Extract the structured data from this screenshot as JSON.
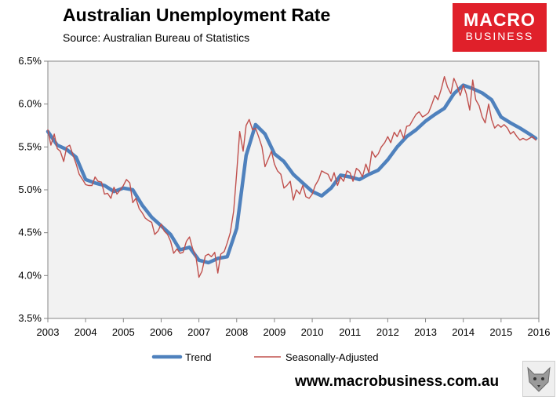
{
  "header": {
    "title": "Australian Unemployment Rate",
    "subtitle": "Source: Australian Bureau of Statistics"
  },
  "logo": {
    "line1": "MACRO",
    "line2": "BUSINESS"
  },
  "footer": {
    "website": "www.macrobusiness.com.au"
  },
  "chart_data": {
    "type": "line",
    "title": "Australian Unemployment Rate",
    "xlim": [
      2003,
      2016
    ],
    "ylim": [
      3.5,
      6.5
    ],
    "x_ticks": [
      2003,
      2004,
      2005,
      2006,
      2007,
      2008,
      2009,
      2010,
      2011,
      2012,
      2013,
      2014,
      2015,
      2016
    ],
    "x_tick_labels": [
      "2003",
      "2004",
      "2005",
      "2006",
      "2007",
      "2008",
      "2009",
      "2010",
      "2011",
      "2012",
      "2013",
      "2014",
      "2015",
      "2016"
    ],
    "y_ticks": [
      3.5,
      4.0,
      4.5,
      5.0,
      5.5,
      6.0,
      6.5
    ],
    "y_tick_labels": [
      "3.5%",
      "4.0%",
      "4.5%",
      "5.0%",
      "5.5%",
      "6.0%",
      "6.5%"
    ],
    "grid": false,
    "legend_position": "bottom",
    "series": [
      {
        "name": "Trend",
        "color": "#4f81bd",
        "points": [
          [
            2003.0,
            5.68
          ],
          [
            2003.25,
            5.52
          ],
          [
            2003.5,
            5.47
          ],
          [
            2003.75,
            5.38
          ],
          [
            2004.0,
            5.12
          ],
          [
            2004.25,
            5.08
          ],
          [
            2004.5,
            5.05
          ],
          [
            2004.75,
            4.98
          ],
          [
            2005.0,
            5.02
          ],
          [
            2005.25,
            5.0
          ],
          [
            2005.5,
            4.82
          ],
          [
            2005.75,
            4.68
          ],
          [
            2006.0,
            4.58
          ],
          [
            2006.25,
            4.48
          ],
          [
            2006.5,
            4.3
          ],
          [
            2006.75,
            4.33
          ],
          [
            2007.0,
            4.18
          ],
          [
            2007.25,
            4.15
          ],
          [
            2007.5,
            4.2
          ],
          [
            2007.75,
            4.22
          ],
          [
            2008.0,
            4.55
          ],
          [
            2008.25,
            5.4
          ],
          [
            2008.5,
            5.76
          ],
          [
            2008.75,
            5.65
          ],
          [
            2009.0,
            5.42
          ],
          [
            2009.25,
            5.33
          ],
          [
            2009.5,
            5.18
          ],
          [
            2009.75,
            5.08
          ],
          [
            2010.0,
            4.98
          ],
          [
            2010.25,
            4.93
          ],
          [
            2010.5,
            5.02
          ],
          [
            2010.75,
            5.17
          ],
          [
            2011.0,
            5.15
          ],
          [
            2011.25,
            5.12
          ],
          [
            2011.5,
            5.18
          ],
          [
            2011.75,
            5.23
          ],
          [
            2012.0,
            5.35
          ],
          [
            2012.25,
            5.5
          ],
          [
            2012.5,
            5.62
          ],
          [
            2012.75,
            5.7
          ],
          [
            2013.0,
            5.8
          ],
          [
            2013.25,
            5.88
          ],
          [
            2013.5,
            5.95
          ],
          [
            2013.75,
            6.12
          ],
          [
            2014.0,
            6.22
          ],
          [
            2014.25,
            6.18
          ],
          [
            2014.5,
            6.13
          ],
          [
            2014.75,
            6.05
          ],
          [
            2015.0,
            5.85
          ],
          [
            2015.25,
            5.78
          ],
          [
            2015.5,
            5.72
          ],
          [
            2015.75,
            5.65
          ],
          [
            2015.92,
            5.6
          ]
        ]
      },
      {
        "name": "Seasonally-Adjusted",
        "color": "#c0504d",
        "points": [
          [
            2003.0,
            5.7
          ],
          [
            2003.08,
            5.52
          ],
          [
            2003.17,
            5.65
          ],
          [
            2003.25,
            5.48
          ],
          [
            2003.33,
            5.45
          ],
          [
            2003.42,
            5.33
          ],
          [
            2003.5,
            5.5
          ],
          [
            2003.58,
            5.52
          ],
          [
            2003.67,
            5.4
          ],
          [
            2003.75,
            5.3
          ],
          [
            2003.83,
            5.18
          ],
          [
            2003.92,
            5.12
          ],
          [
            2004.0,
            5.06
          ],
          [
            2004.08,
            5.05
          ],
          [
            2004.17,
            5.05
          ],
          [
            2004.25,
            5.15
          ],
          [
            2004.33,
            5.1
          ],
          [
            2004.42,
            5.09
          ],
          [
            2004.5,
            4.95
          ],
          [
            2004.58,
            4.96
          ],
          [
            2004.67,
            4.9
          ],
          [
            2004.75,
            5.03
          ],
          [
            2004.83,
            4.95
          ],
          [
            2004.92,
            5.0
          ],
          [
            2005.0,
            5.05
          ],
          [
            2005.08,
            5.12
          ],
          [
            2005.17,
            5.08
          ],
          [
            2005.25,
            4.85
          ],
          [
            2005.33,
            4.9
          ],
          [
            2005.42,
            4.78
          ],
          [
            2005.5,
            4.73
          ],
          [
            2005.58,
            4.67
          ],
          [
            2005.67,
            4.64
          ],
          [
            2005.75,
            4.62
          ],
          [
            2005.83,
            4.48
          ],
          [
            2005.92,
            4.52
          ],
          [
            2006.0,
            4.6
          ],
          [
            2006.08,
            4.52
          ],
          [
            2006.17,
            4.48
          ],
          [
            2006.25,
            4.4
          ],
          [
            2006.33,
            4.26
          ],
          [
            2006.42,
            4.31
          ],
          [
            2006.5,
            4.26
          ],
          [
            2006.58,
            4.27
          ],
          [
            2006.67,
            4.4
          ],
          [
            2006.75,
            4.45
          ],
          [
            2006.83,
            4.32
          ],
          [
            2006.92,
            4.22
          ],
          [
            2007.0,
            3.98
          ],
          [
            2007.08,
            4.05
          ],
          [
            2007.17,
            4.23
          ],
          [
            2007.25,
            4.25
          ],
          [
            2007.33,
            4.22
          ],
          [
            2007.42,
            4.27
          ],
          [
            2007.5,
            4.03
          ],
          [
            2007.58,
            4.25
          ],
          [
            2007.67,
            4.28
          ],
          [
            2007.75,
            4.38
          ],
          [
            2007.83,
            4.5
          ],
          [
            2007.92,
            4.75
          ],
          [
            2008.0,
            5.2
          ],
          [
            2008.08,
            5.68
          ],
          [
            2008.17,
            5.45
          ],
          [
            2008.25,
            5.75
          ],
          [
            2008.33,
            5.82
          ],
          [
            2008.42,
            5.7
          ],
          [
            2008.5,
            5.72
          ],
          [
            2008.58,
            5.62
          ],
          [
            2008.67,
            5.5
          ],
          [
            2008.75,
            5.27
          ],
          [
            2008.83,
            5.35
          ],
          [
            2008.92,
            5.45
          ],
          [
            2009.0,
            5.3
          ],
          [
            2009.08,
            5.22
          ],
          [
            2009.17,
            5.18
          ],
          [
            2009.25,
            5.02
          ],
          [
            2009.33,
            5.05
          ],
          [
            2009.42,
            5.1
          ],
          [
            2009.5,
            4.88
          ],
          [
            2009.58,
            5.0
          ],
          [
            2009.67,
            4.95
          ],
          [
            2009.75,
            5.05
          ],
          [
            2009.83,
            4.92
          ],
          [
            2009.92,
            4.9
          ],
          [
            2010.0,
            4.95
          ],
          [
            2010.08,
            5.05
          ],
          [
            2010.17,
            5.12
          ],
          [
            2010.25,
            5.22
          ],
          [
            2010.33,
            5.2
          ],
          [
            2010.42,
            5.18
          ],
          [
            2010.5,
            5.1
          ],
          [
            2010.58,
            5.2
          ],
          [
            2010.67,
            5.05
          ],
          [
            2010.75,
            5.15
          ],
          [
            2010.83,
            5.1
          ],
          [
            2010.92,
            5.22
          ],
          [
            2011.0,
            5.2
          ],
          [
            2011.08,
            5.1
          ],
          [
            2011.17,
            5.25
          ],
          [
            2011.25,
            5.22
          ],
          [
            2011.33,
            5.15
          ],
          [
            2011.42,
            5.3
          ],
          [
            2011.5,
            5.2
          ],
          [
            2011.58,
            5.45
          ],
          [
            2011.67,
            5.38
          ],
          [
            2011.75,
            5.42
          ],
          [
            2011.83,
            5.5
          ],
          [
            2011.92,
            5.55
          ],
          [
            2012.0,
            5.62
          ],
          [
            2012.08,
            5.55
          ],
          [
            2012.17,
            5.67
          ],
          [
            2012.25,
            5.62
          ],
          [
            2012.33,
            5.7
          ],
          [
            2012.42,
            5.6
          ],
          [
            2012.5,
            5.74
          ],
          [
            2012.58,
            5.75
          ],
          [
            2012.67,
            5.82
          ],
          [
            2012.75,
            5.88
          ],
          [
            2012.83,
            5.91
          ],
          [
            2012.92,
            5.85
          ],
          [
            2013.0,
            5.87
          ],
          [
            2013.08,
            5.9
          ],
          [
            2013.17,
            6.0
          ],
          [
            2013.25,
            6.1
          ],
          [
            2013.33,
            6.05
          ],
          [
            2013.42,
            6.18
          ],
          [
            2013.5,
            6.32
          ],
          [
            2013.58,
            6.2
          ],
          [
            2013.67,
            6.12
          ],
          [
            2013.75,
            6.3
          ],
          [
            2013.83,
            6.22
          ],
          [
            2013.92,
            6.1
          ],
          [
            2014.0,
            6.22
          ],
          [
            2014.08,
            6.12
          ],
          [
            2014.17,
            5.93
          ],
          [
            2014.25,
            6.28
          ],
          [
            2014.33,
            6.05
          ],
          [
            2014.42,
            5.98
          ],
          [
            2014.5,
            5.85
          ],
          [
            2014.58,
            5.78
          ],
          [
            2014.67,
            6.0
          ],
          [
            2014.75,
            5.82
          ],
          [
            2014.83,
            5.72
          ],
          [
            2014.92,
            5.76
          ],
          [
            2015.0,
            5.73
          ],
          [
            2015.08,
            5.76
          ],
          [
            2015.17,
            5.72
          ],
          [
            2015.25,
            5.65
          ],
          [
            2015.33,
            5.68
          ],
          [
            2015.42,
            5.62
          ],
          [
            2015.5,
            5.58
          ],
          [
            2015.58,
            5.6
          ],
          [
            2015.67,
            5.58
          ],
          [
            2015.75,
            5.6
          ],
          [
            2015.83,
            5.62
          ],
          [
            2015.92,
            5.58
          ]
        ]
      }
    ]
  }
}
